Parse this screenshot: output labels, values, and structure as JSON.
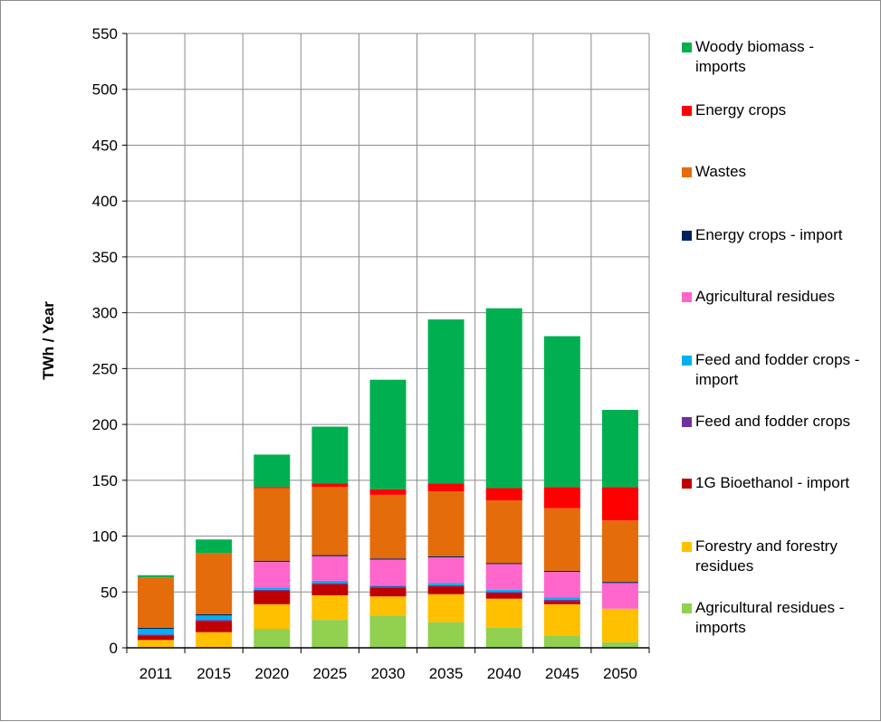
{
  "chart_data": {
    "type": "bar",
    "stacked": true,
    "title": "",
    "xlabel": "",
    "ylabel": "TWh / Year",
    "ylim": [
      0,
      550
    ],
    "yticks": [
      0,
      50,
      100,
      150,
      200,
      250,
      300,
      350,
      400,
      450,
      500,
      550
    ],
    "grid": true,
    "legend_position": "right",
    "categories": [
      "2011",
      "2015",
      "2020",
      "2025",
      "2030",
      "2035",
      "2040",
      "2045",
      "2050"
    ],
    "series": [
      {
        "name": "Agricultural residues - imports",
        "color": "#92D050",
        "values": [
          0,
          0,
          17,
          25,
          29,
          23,
          18,
          11,
          5
        ]
      },
      {
        "name": "Forestry and forestry residues",
        "color": "#FFC000",
        "values": [
          7,
          14,
          22,
          22,
          17,
          25,
          26,
          28,
          30
        ]
      },
      {
        "name": "1G Bioethanol - import",
        "color": "#C00000",
        "values": [
          4,
          10,
          12,
          10,
          8,
          7,
          5,
          3,
          0
        ]
      },
      {
        "name": "Feed and fodder crops",
        "color": "#7030A0",
        "values": [
          1,
          1,
          1,
          1,
          1,
          1,
          1,
          1,
          0
        ]
      },
      {
        "name": "Feed and fodder crops - import",
        "color": "#00B0F0",
        "values": [
          5,
          4,
          2,
          2,
          1,
          2,
          2,
          2,
          0
        ]
      },
      {
        "name": "Agricultural residues",
        "color": "#FF66CC",
        "values": [
          0,
          0,
          23,
          22,
          23,
          23,
          23,
          23,
          23
        ]
      },
      {
        "name": "Energy crops - import",
        "color": "#002060",
        "values": [
          1,
          1,
          1,
          1,
          1,
          1,
          1,
          1,
          1
        ]
      },
      {
        "name": "Wastes",
        "color": "#E46C0A",
        "values": [
          45,
          55,
          65,
          61,
          57,
          58,
          56,
          56,
          55
        ]
      },
      {
        "name": "Energy crops",
        "color": "#FF0000",
        "values": [
          0,
          0,
          1,
          3,
          5,
          7,
          11,
          19,
          30
        ]
      },
      {
        "name": "Woody biomass - imports",
        "color": "#00B050",
        "values": [
          2,
          12,
          29,
          51,
          98,
          147,
          161,
          135,
          69
        ]
      }
    ]
  },
  "legend": [
    {
      "label": "Woody biomass - imports",
      "color": "#00B050"
    },
    {
      "label": "Energy crops",
      "color": "#FF0000"
    },
    {
      "label": "Wastes",
      "color": "#E46C0A"
    },
    {
      "label": "Energy crops - import",
      "color": "#002060"
    },
    {
      "label": "Agricultural residues",
      "color": "#FF66CC"
    },
    {
      "label": "Feed and fodder crops - import",
      "color": "#00B0F0"
    },
    {
      "label": "Feed and fodder crops",
      "color": "#7030A0"
    },
    {
      "label": "1G Bioethanol - import",
      "color": "#C00000"
    },
    {
      "label": "Forestry and forestry residues",
      "color": "#FFC000"
    },
    {
      "label": "Agricultural residues - imports",
      "color": "#92D050"
    }
  ]
}
